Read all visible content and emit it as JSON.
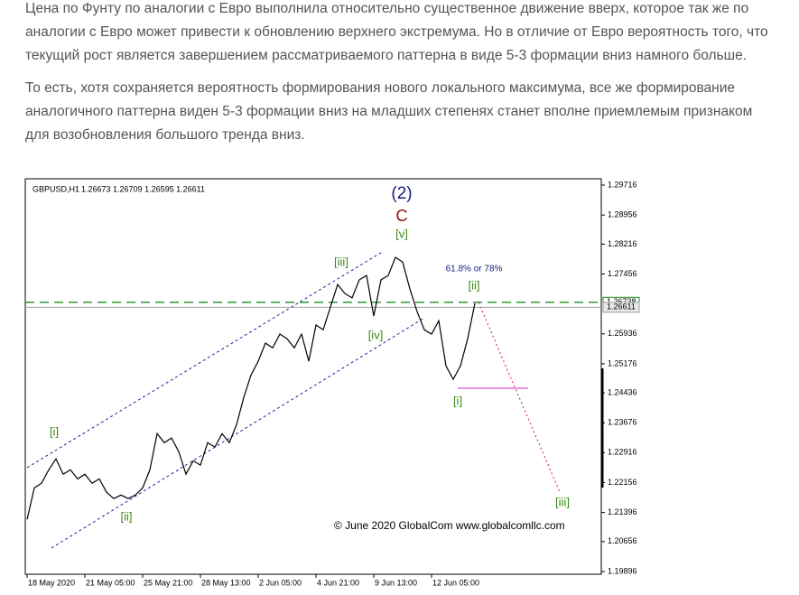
{
  "paragraphs": [
    "Цена по Фунту по аналогии с Евро выполнила относительно существенное движение вверх, которое так же по аналогии с Евро может привести к обновлению верхнего экстремума. Но в отличие от Евро вероятность того, что текущий рост является завершением рассматриваемого паттерна в виде 5-3 формации вниз намного больше.",
    "То есть, хотя сохраняется вероятность формирования нового локального максимума, все же формирование аналогичного паттерна виден 5-3 формации вниз на младших степенях станет вполне приемлемым признаком для возобновления большого тренда вниз."
  ],
  "chart_data": {
    "type": "line",
    "symbol": "GBPUSD,H1",
    "ohlc_text": "1.26673 1.26709 1.26595 1.26611",
    "watermark": "© June 2020 GlobalCom www.globalcomllc.com",
    "series": [
      {
        "name": "GBPUSD",
        "color": "#000000",
        "values": [
          1.2122,
          1.2202,
          1.2214,
          1.2248,
          1.2276,
          1.2237,
          1.2248,
          1.2225,
          1.2237,
          1.2214,
          1.2225,
          1.2191,
          1.2175,
          1.2184,
          1.2175,
          1.2184,
          1.2202,
          1.2248,
          1.234,
          1.2317,
          1.2329,
          1.2294,
          1.2237,
          1.2271,
          1.226,
          1.2317,
          1.2306,
          1.234,
          1.2317,
          1.2363,
          1.2432,
          1.2489,
          1.2524,
          1.257,
          1.2558,
          1.2593,
          1.2581,
          1.2558,
          1.2593,
          1.2524,
          1.2616,
          1.2604,
          1.2662,
          1.2719,
          1.2696,
          1.2685,
          1.2731,
          1.2742,
          1.2639,
          1.2731,
          1.2742,
          1.2788,
          1.2776,
          1.2708,
          1.265,
          1.2604,
          1.2593,
          1.2627,
          1.2512,
          1.2478,
          1.2512,
          1.2581,
          1.2671
        ]
      }
    ],
    "xlim": [
      -0.25,
      79.5
    ],
    "xticks": [
      {
        "value": 0,
        "label": "18 May 2020"
      },
      {
        "value": 8,
        "label": "21 May 05:00"
      },
      {
        "value": 16,
        "label": "25 May 21:00"
      },
      {
        "value": 24,
        "label": "28 May 13:00"
      },
      {
        "value": 32,
        "label": "2 Jun 05:00"
      },
      {
        "value": 40,
        "label": "4 Jun 21:00"
      },
      {
        "value": 48,
        "label": "9 Jun 13:00"
      },
      {
        "value": 56,
        "label": "12 Jun 05:00"
      }
    ],
    "ylim": [
      1.19827,
      1.29877
    ],
    "yticks": [
      1.29716,
      1.28956,
      1.28216,
      1.27456,
      1.25936,
      1.25176,
      1.24436,
      1.23676,
      1.22916,
      1.22156,
      1.21396,
      1.20656,
      1.19896
    ],
    "levels": [
      {
        "value": 1.26738,
        "color": "#1e8c1e"
      },
      {
        "value": 1.26611,
        "color": "#a0a0a0"
      }
    ],
    "annotations": [
      "(2)",
      "C",
      "[v]",
      "[iii]",
      "[iv]",
      "[i]",
      "[ii]",
      "61.8% or 78%",
      "[i]",
      "[ii]",
      "[iii]"
    ]
  }
}
